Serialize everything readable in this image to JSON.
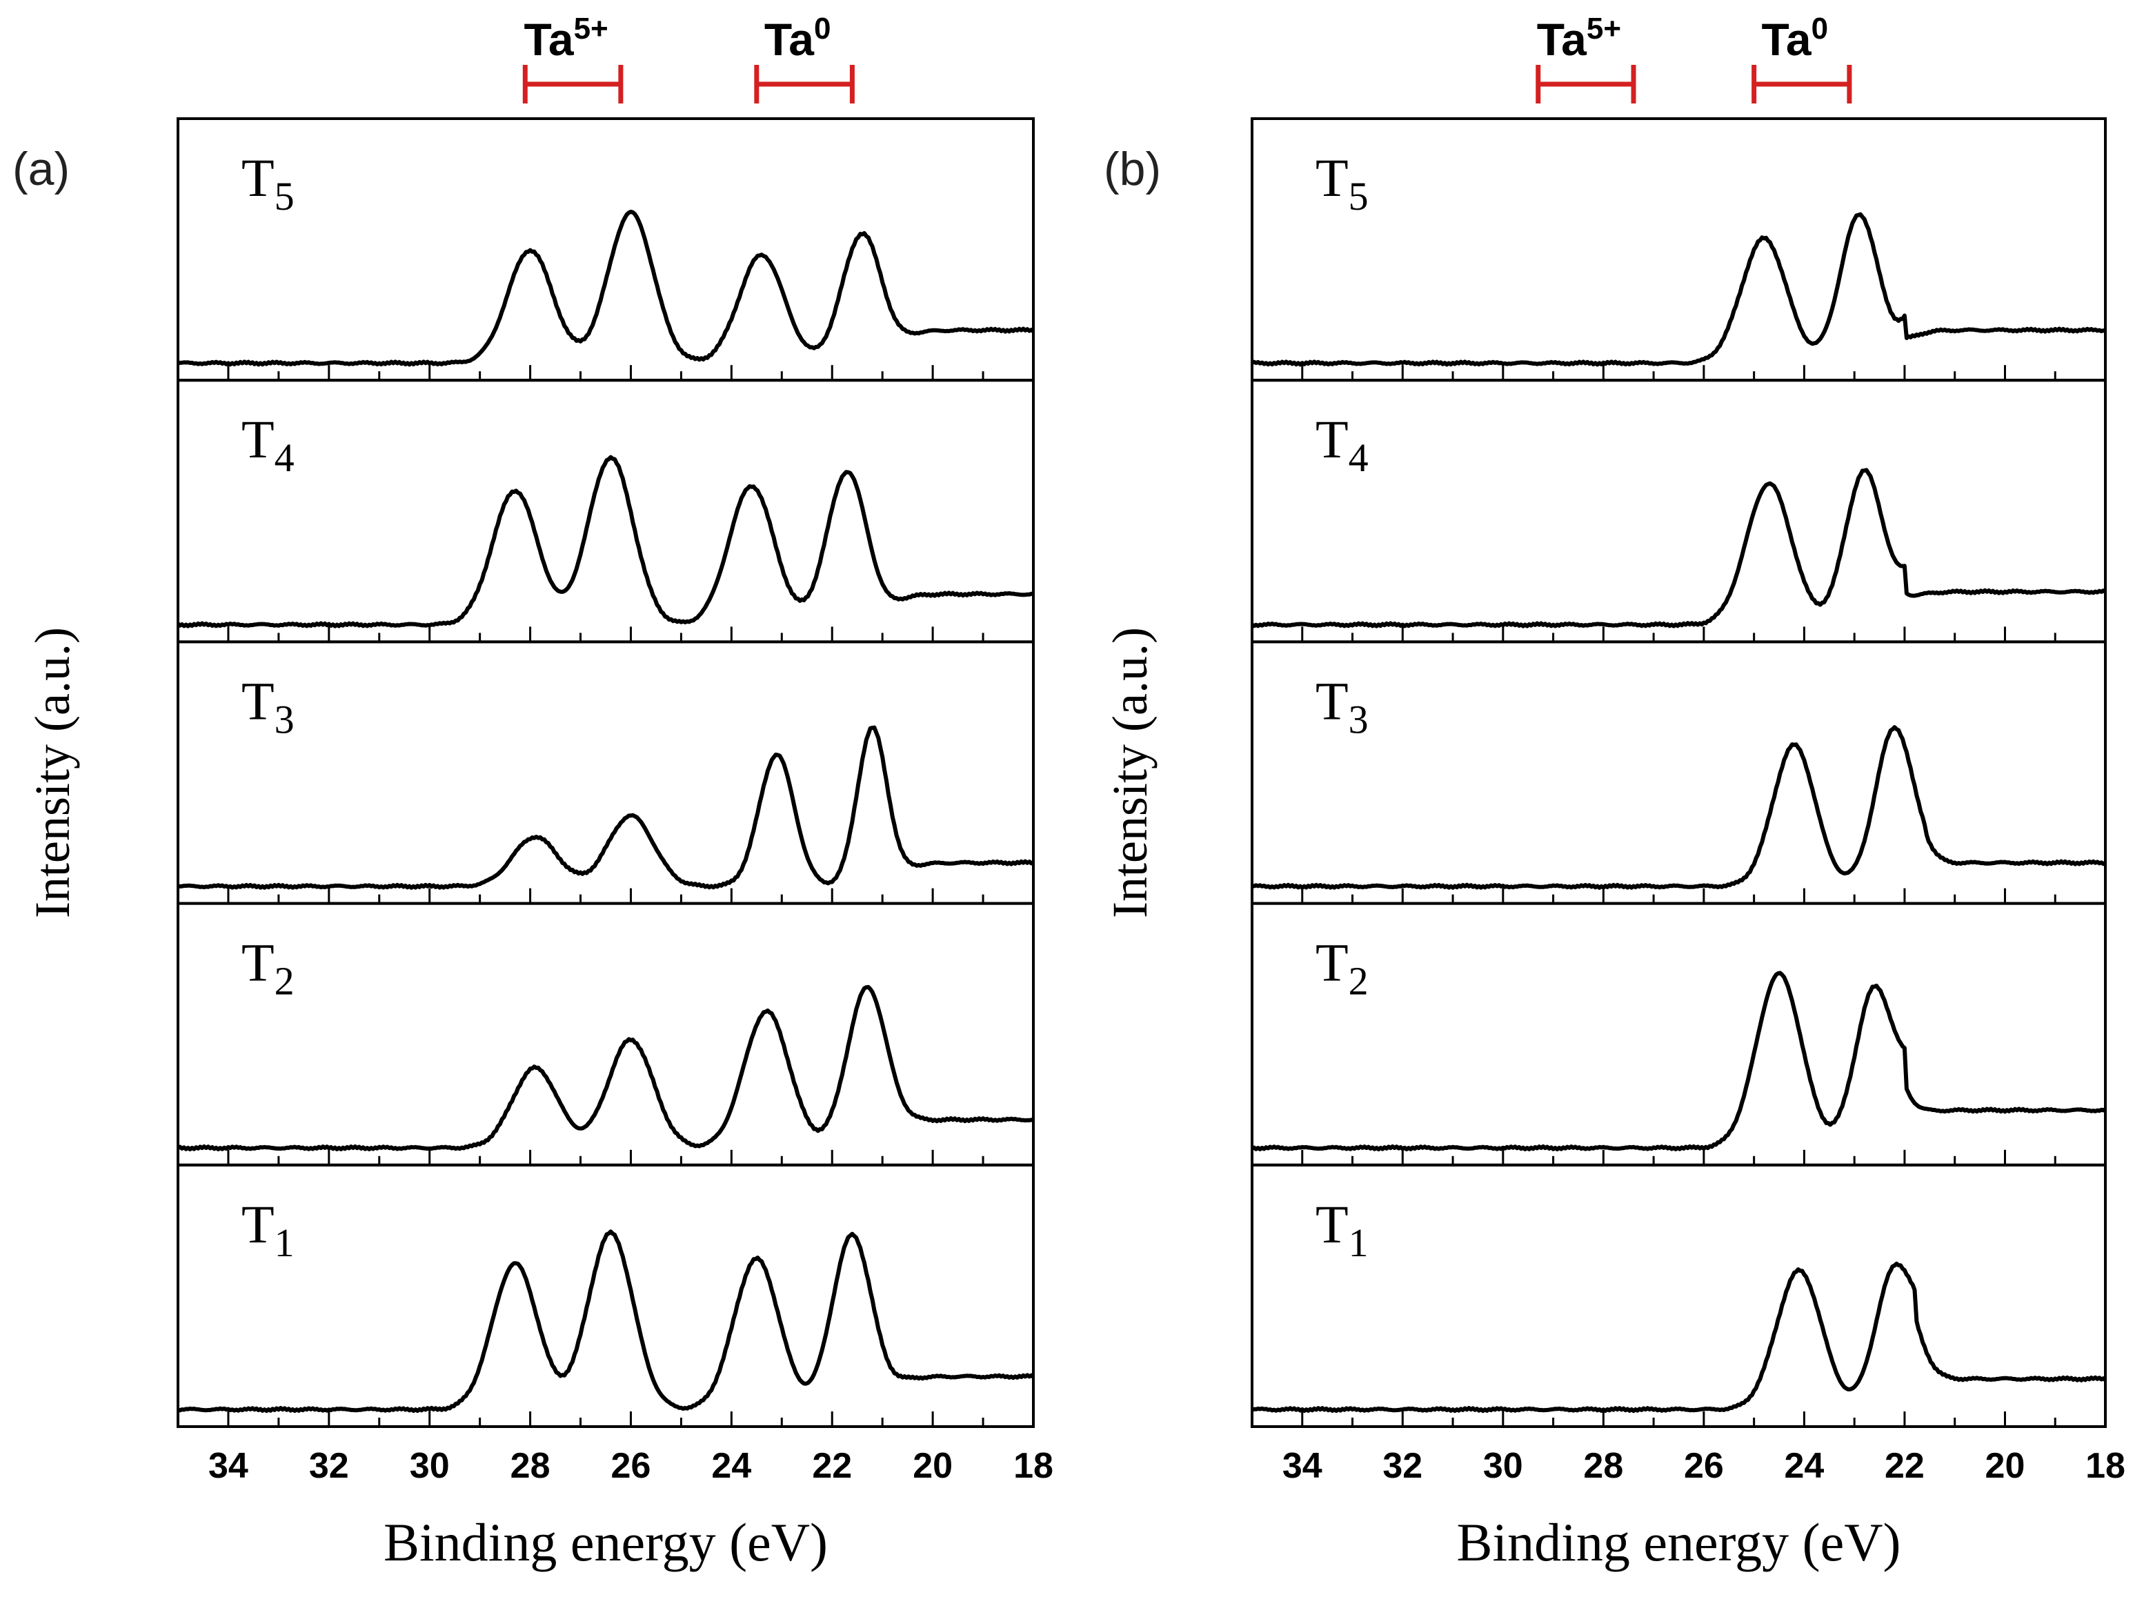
{
  "figure": {
    "ylabel": "Intensity (a.u.)",
    "xlabel": "Binding energy (eV)",
    "colors": {
      "trace": "#000000",
      "marker": "#d42020",
      "axis": "#000000"
    }
  },
  "chart_data": [
    {
      "panel_label": "(a)",
      "type": "line",
      "title": "",
      "xlabel": "Binding energy (eV)",
      "ylabel": "Intensity (a.u.)",
      "xlim": [
        35,
        18
      ],
      "x_ticks": [
        "34",
        "32",
        "30",
        "28",
        "26",
        "24",
        "22",
        "20",
        "18"
      ],
      "markers": [
        {
          "label": "Ta",
          "sup": "5+",
          "range": [
            28.1,
            26.2
          ]
        },
        {
          "label": "Ta",
          "sup": "0",
          "range": [
            23.5,
            21.6
          ]
        }
      ],
      "series": [
        {
          "name": "T",
          "sub": "5",
          "baseline_high": 0.16,
          "baseline_low": 0.02,
          "onset": 20.6,
          "peaks": [
            {
              "x": 28.0,
              "h": 0.48,
              "w": 0.45
            },
            {
              "x": 26.0,
              "h": 0.64,
              "w": 0.45
            },
            {
              "x": 23.4,
              "h": 0.46,
              "w": 0.45
            },
            {
              "x": 21.4,
              "h": 0.55,
              "w": 0.4
            }
          ]
        },
        {
          "name": "T",
          "sub": "4",
          "baseline_high": 0.15,
          "baseline_low": 0.02,
          "onset": 20.8,
          "peaks": [
            {
              "x": 28.3,
              "h": 0.57,
              "w": 0.45
            },
            {
              "x": 26.4,
              "h": 0.71,
              "w": 0.45
            },
            {
              "x": 23.6,
              "h": 0.59,
              "w": 0.45
            },
            {
              "x": 21.7,
              "h": 0.65,
              "w": 0.4
            }
          ]
        },
        {
          "name": "T",
          "sub": "3",
          "baseline_high": 0.12,
          "baseline_low": 0.02,
          "onset": 20.6,
          "peaks": [
            {
              "x": 27.9,
              "h": 0.21,
              "w": 0.45
            },
            {
              "x": 26.0,
              "h": 0.3,
              "w": 0.45
            },
            {
              "x": 23.1,
              "h": 0.56,
              "w": 0.35
            },
            {
              "x": 21.2,
              "h": 0.67,
              "w": 0.3
            }
          ]
        },
        {
          "name": "T",
          "sub": "2",
          "baseline_high": 0.14,
          "baseline_low": 0.02,
          "onset": 20.6,
          "peaks": [
            {
              "x": 27.9,
              "h": 0.34,
              "w": 0.45
            },
            {
              "x": 26.0,
              "h": 0.46,
              "w": 0.45
            },
            {
              "x": 23.3,
              "h": 0.58,
              "w": 0.45
            },
            {
              "x": 21.3,
              "h": 0.68,
              "w": 0.4
            }
          ]
        },
        {
          "name": "T",
          "sub": "1",
          "baseline_high": 0.16,
          "baseline_low": 0.02,
          "onset": 20.8,
          "peaks": [
            {
              "x": 28.3,
              "h": 0.62,
              "w": 0.45
            },
            {
              "x": 26.4,
              "h": 0.75,
              "w": 0.45
            },
            {
              "x": 23.5,
              "h": 0.64,
              "w": 0.45
            },
            {
              "x": 21.6,
              "h": 0.74,
              "w": 0.4
            }
          ]
        }
      ]
    },
    {
      "panel_label": "(b)",
      "type": "line",
      "title": "",
      "xlabel": "Binding energy (eV)",
      "ylabel": "Intensity (a.u.)",
      "xlim": [
        35,
        18
      ],
      "x_ticks": [
        "34",
        "32",
        "30",
        "28",
        "26",
        "24",
        "22",
        "20",
        "18"
      ],
      "markers": [
        {
          "label": "Ta",
          "sup": "5+",
          "range": [
            29.3,
            27.4
          ]
        },
        {
          "label": "Ta",
          "sup": "0",
          "range": [
            25.0,
            23.1
          ]
        }
      ],
      "series": [
        {
          "name": "T",
          "sub": "5",
          "baseline_high": 0.16,
          "baseline_low": 0.02,
          "onset": 22.0,
          "shoulder": 0.18,
          "peaks": [
            {
              "x": 24.8,
              "h": 0.53,
              "w": 0.45
            },
            {
              "x": 22.9,
              "h": 0.63,
              "w": 0.38
            }
          ]
        },
        {
          "name": "T",
          "sub": "4",
          "baseline_high": 0.16,
          "baseline_low": 0.02,
          "onset": 22.0,
          "shoulder": 0.22,
          "peaks": [
            {
              "x": 24.7,
              "h": 0.6,
              "w": 0.45
            },
            {
              "x": 22.8,
              "h": 0.65,
              "w": 0.38
            }
          ]
        },
        {
          "name": "T",
          "sub": "3",
          "baseline_high": 0.12,
          "baseline_low": 0.02,
          "onset": 21.6,
          "shoulder": 0.05,
          "peaks": [
            {
              "x": 24.2,
              "h": 0.6,
              "w": 0.42
            },
            {
              "x": 22.2,
              "h": 0.67,
              "w": 0.38
            }
          ]
        },
        {
          "name": "T",
          "sub": "2",
          "baseline_high": 0.18,
          "baseline_low": 0.02,
          "onset": 22.0,
          "shoulder": 0.3,
          "peaks": [
            {
              "x": 24.5,
              "h": 0.74,
              "w": 0.45
            },
            {
              "x": 22.6,
              "h": 0.67,
              "w": 0.38
            }
          ]
        },
        {
          "name": "T",
          "sub": "1",
          "baseline_high": 0.15,
          "baseline_low": 0.02,
          "onset": 21.8,
          "shoulder": 0.22,
          "peaks": [
            {
              "x": 24.1,
              "h": 0.59,
              "w": 0.45
            },
            {
              "x": 22.2,
              "h": 0.58,
              "w": 0.38
            }
          ]
        }
      ]
    }
  ]
}
